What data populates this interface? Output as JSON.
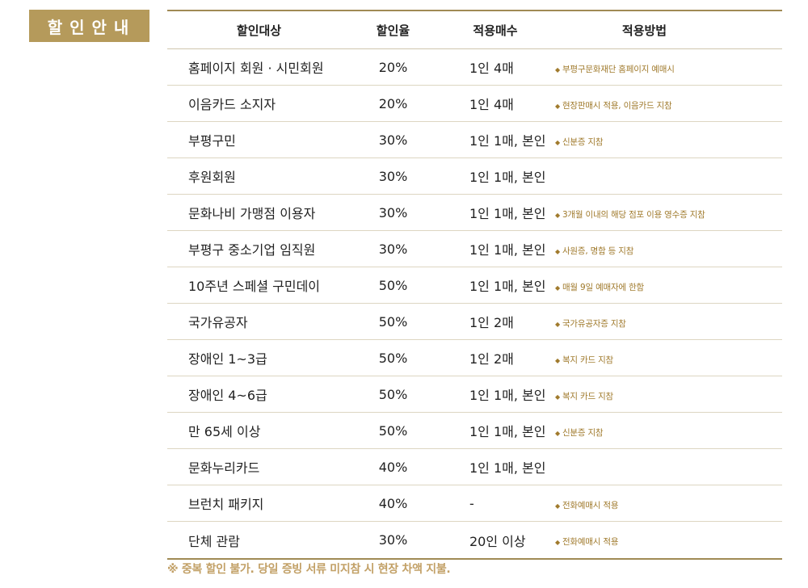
{
  "section_title": "할인안내",
  "table": {
    "headers": [
      "할인대상",
      "할인율",
      "적용매수",
      "적용방법"
    ],
    "rows": [
      {
        "target": "홈페이지 회원 · 시민회원",
        "rate": "20%",
        "tickets": "1인 4매",
        "method": "부평구문화재단 홈페이지 예매시"
      },
      {
        "target": "이음카드 소지자",
        "rate": "20%",
        "tickets": "1인 4매",
        "method": "현장판매시 적용, 이음카드 지참"
      },
      {
        "target": "부평구민",
        "rate": "30%",
        "tickets": "1인 1매, 본인",
        "method": "신분증 지참"
      },
      {
        "target": "후원회원",
        "rate": "30%",
        "tickets": "1인 1매, 본인",
        "method": ""
      },
      {
        "target": "문화나비 가맹점 이용자",
        "rate": "30%",
        "tickets": "1인 1매, 본인",
        "method": "3개월 이내의 해당 점포 이용 영수증 지참"
      },
      {
        "target": "부평구 중소기업 임직원",
        "rate": "30%",
        "tickets": "1인 1매, 본인",
        "method": "사원증, 명함 등 지참"
      },
      {
        "target": "10주년 스페셜 구민데이",
        "rate": "50%",
        "tickets": "1인 1매, 본인",
        "method": "매월 9일 예매자에 한함"
      },
      {
        "target": "국가유공자",
        "rate": "50%",
        "tickets": "1인 2매",
        "method": "국가유공자증 지참"
      },
      {
        "target": "장애인 1~3급",
        "rate": "50%",
        "tickets": "1인 2매",
        "method": "복지 카드 지참"
      },
      {
        "target": "장애인 4~6급",
        "rate": "50%",
        "tickets": "1인 1매, 본인",
        "method": "복지 카드 지참"
      },
      {
        "target": "만 65세 이상",
        "rate": "50%",
        "tickets": "1인 1매, 본인",
        "method": "신분증 지참"
      },
      {
        "target": "문화누리카드",
        "rate": "40%",
        "tickets": "1인 1매, 본인",
        "method": ""
      },
      {
        "target": "브런치 패키지",
        "rate": "40%",
        "tickets": "-",
        "method": "전화예매시 적용"
      },
      {
        "target": "단체 관람",
        "rate": "30%",
        "tickets": "20인 이상",
        "method": "전화예매시 적용"
      }
    ]
  },
  "footer_note": "※ 중복 할인 불가. 당일 증빙 서류 미지참 시 현장 차액 지불.",
  "colors": {
    "badge_bg": "#b59a5b",
    "border": "#a08a55",
    "note_text": "#a07a2c",
    "footer_text": "#c2a066"
  }
}
